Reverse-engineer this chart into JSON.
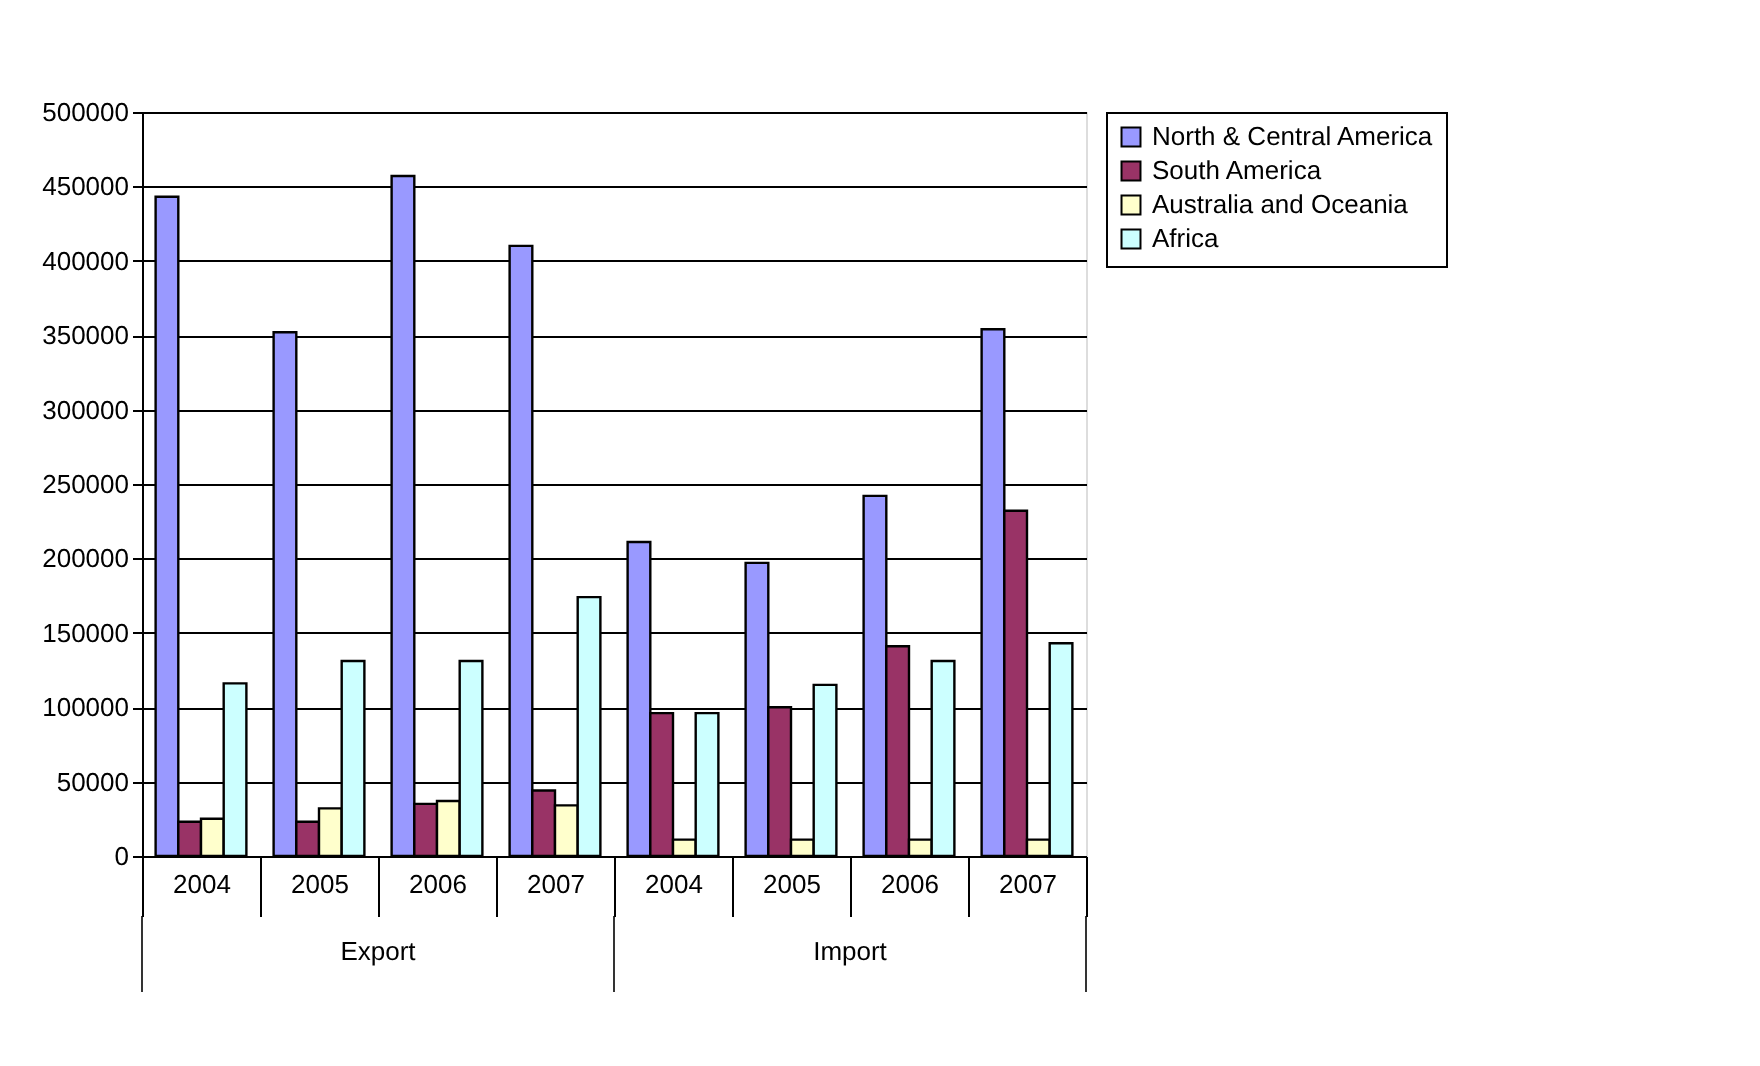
{
  "chart_data": {
    "type": "bar",
    "categories": [
      "2004",
      "2005",
      "2006",
      "2007",
      "2004",
      "2005",
      "2006",
      "2007"
    ],
    "series": [
      {
        "name": "North & Central America",
        "color": "#9999ff",
        "values": [
          443000,
          352000,
          457000,
          410000,
          211000,
          197000,
          242000,
          354000
        ]
      },
      {
        "name": "South America",
        "color": "#993366",
        "values": [
          23000,
          23000,
          35000,
          44000,
          96000,
          100000,
          141000,
          232000
        ]
      },
      {
        "name": "Australia and Oceania",
        "color": "#ffffcc",
        "values": [
          25000,
          32000,
          37000,
          34000,
          11000,
          11000,
          11000,
          11000
        ]
      },
      {
        "name": "Africa",
        "color": "#ccffff",
        "values": [
          116000,
          131000,
          131000,
          174000,
          96000,
          115000,
          131000,
          143000
        ]
      }
    ],
    "annotations": [
      "Export",
      "Import"
    ],
    "ylim": [
      0,
      500000
    ],
    "yticks": [
      0,
      50000,
      100000,
      150000,
      200000,
      250000,
      300000,
      350000,
      400000,
      450000,
      500000
    ],
    "grid": "y",
    "legend": "right"
  }
}
